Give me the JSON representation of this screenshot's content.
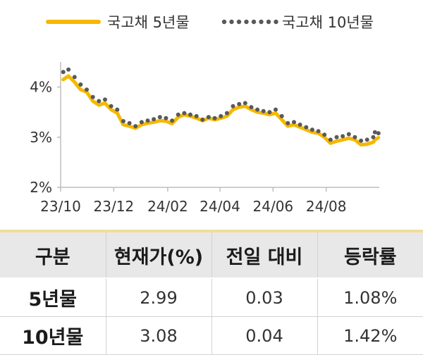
{
  "legend": [
    {
      "label": "국고채 5년물",
      "style": "solid",
      "color": "#f5b800"
    },
    {
      "label": "국고채 10년물",
      "style": "dotted",
      "color": "#595959"
    }
  ],
  "chart_data": {
    "type": "line",
    "ylim": [
      2,
      4.5
    ],
    "yticks": [
      "2%",
      "3%",
      "4%"
    ],
    "ytick_values": [
      2,
      3,
      4
    ],
    "xlim": [
      "2023-10-01",
      "2024-10-01"
    ],
    "xticks": [
      "23/10",
      "23/12",
      "24/02",
      "24/04",
      "24/06",
      "24/08"
    ],
    "xtick_dates": [
      "2023-10-01",
      "2023-12-01",
      "2024-02-01",
      "2024-04-01",
      "2024-06-01",
      "2024-08-01"
    ],
    "series": [
      {
        "name": "국고채 5년물",
        "color": "#f5b800",
        "style": "solid",
        "points": [
          [
            "2023-10-04",
            4.15
          ],
          [
            "2023-10-10",
            4.22
          ],
          [
            "2023-10-17",
            4.1
          ],
          [
            "2023-10-24",
            3.95
          ],
          [
            "2023-10-31",
            3.9
          ],
          [
            "2023-11-07",
            3.72
          ],
          [
            "2023-11-14",
            3.64
          ],
          [
            "2023-11-21",
            3.68
          ],
          [
            "2023-11-28",
            3.55
          ],
          [
            "2023-12-05",
            3.48
          ],
          [
            "2023-12-12",
            3.25
          ],
          [
            "2023-12-19",
            3.22
          ],
          [
            "2023-12-26",
            3.18
          ],
          [
            "2024-01-02",
            3.25
          ],
          [
            "2024-01-09",
            3.28
          ],
          [
            "2024-01-16",
            3.3
          ],
          [
            "2024-01-23",
            3.33
          ],
          [
            "2024-01-30",
            3.32
          ],
          [
            "2024-02-06",
            3.27
          ],
          [
            "2024-02-13",
            3.4
          ],
          [
            "2024-02-20",
            3.45
          ],
          [
            "2024-02-27",
            3.42
          ],
          [
            "2024-03-05",
            3.38
          ],
          [
            "2024-03-12",
            3.33
          ],
          [
            "2024-03-19",
            3.38
          ],
          [
            "2024-03-26",
            3.35
          ],
          [
            "2024-04-02",
            3.38
          ],
          [
            "2024-04-09",
            3.42
          ],
          [
            "2024-04-16",
            3.55
          ],
          [
            "2024-04-23",
            3.6
          ],
          [
            "2024-04-30",
            3.62
          ],
          [
            "2024-05-07",
            3.55
          ],
          [
            "2024-05-14",
            3.5
          ],
          [
            "2024-05-21",
            3.48
          ],
          [
            "2024-05-28",
            3.45
          ],
          [
            "2024-06-04",
            3.48
          ],
          [
            "2024-06-11",
            3.35
          ],
          [
            "2024-06-18",
            3.22
          ],
          [
            "2024-06-25",
            3.25
          ],
          [
            "2024-07-02",
            3.2
          ],
          [
            "2024-07-09",
            3.15
          ],
          [
            "2024-07-16",
            3.1
          ],
          [
            "2024-07-23",
            3.08
          ],
          [
            "2024-07-30",
            3.0
          ],
          [
            "2024-08-06",
            2.88
          ],
          [
            "2024-08-13",
            2.92
          ],
          [
            "2024-08-20",
            2.95
          ],
          [
            "2024-08-27",
            2.98
          ],
          [
            "2024-09-03",
            2.95
          ],
          [
            "2024-09-10",
            2.85
          ],
          [
            "2024-09-17",
            2.86
          ],
          [
            "2024-09-24",
            2.9
          ],
          [
            "2024-09-26",
            2.95
          ],
          [
            "2024-09-30",
            2.99
          ]
        ]
      },
      {
        "name": "국고채 10년물",
        "color": "#595959",
        "style": "dotted",
        "points": [
          [
            "2023-10-04",
            4.3
          ],
          [
            "2023-10-10",
            4.35
          ],
          [
            "2023-10-17",
            4.2
          ],
          [
            "2023-10-24",
            4.05
          ],
          [
            "2023-10-31",
            3.95
          ],
          [
            "2023-11-07",
            3.8
          ],
          [
            "2023-11-14",
            3.72
          ],
          [
            "2023-11-21",
            3.75
          ],
          [
            "2023-11-28",
            3.62
          ],
          [
            "2023-12-05",
            3.55
          ],
          [
            "2023-12-12",
            3.32
          ],
          [
            "2023-12-19",
            3.28
          ],
          [
            "2023-12-26",
            3.22
          ],
          [
            "2024-01-02",
            3.3
          ],
          [
            "2024-01-09",
            3.33
          ],
          [
            "2024-01-16",
            3.36
          ],
          [
            "2024-01-23",
            3.4
          ],
          [
            "2024-01-30",
            3.38
          ],
          [
            "2024-02-06",
            3.33
          ],
          [
            "2024-02-13",
            3.45
          ],
          [
            "2024-02-20",
            3.48
          ],
          [
            "2024-02-27",
            3.45
          ],
          [
            "2024-03-05",
            3.42
          ],
          [
            "2024-03-12",
            3.35
          ],
          [
            "2024-03-19",
            3.4
          ],
          [
            "2024-03-26",
            3.38
          ],
          [
            "2024-04-02",
            3.42
          ],
          [
            "2024-04-09",
            3.48
          ],
          [
            "2024-04-16",
            3.62
          ],
          [
            "2024-04-23",
            3.66
          ],
          [
            "2024-04-30",
            3.68
          ],
          [
            "2024-05-07",
            3.6
          ],
          [
            "2024-05-14",
            3.55
          ],
          [
            "2024-05-21",
            3.52
          ],
          [
            "2024-05-28",
            3.5
          ],
          [
            "2024-06-04",
            3.55
          ],
          [
            "2024-06-11",
            3.42
          ],
          [
            "2024-06-18",
            3.28
          ],
          [
            "2024-06-25",
            3.3
          ],
          [
            "2024-07-02",
            3.25
          ],
          [
            "2024-07-09",
            3.2
          ],
          [
            "2024-07-16",
            3.15
          ],
          [
            "2024-07-23",
            3.12
          ],
          [
            "2024-07-30",
            3.05
          ],
          [
            "2024-08-06",
            2.95
          ],
          [
            "2024-08-13",
            3.0
          ],
          [
            "2024-08-20",
            3.02
          ],
          [
            "2024-08-27",
            3.06
          ],
          [
            "2024-09-03",
            3.0
          ],
          [
            "2024-09-10",
            2.93
          ],
          [
            "2024-09-17",
            2.95
          ],
          [
            "2024-09-24",
            3.0
          ],
          [
            "2024-09-26",
            3.1
          ],
          [
            "2024-09-30",
            3.08
          ]
        ]
      }
    ]
  },
  "table": {
    "headers": [
      "구분",
      "현재가(%)",
      "전일 대비",
      "등락률"
    ],
    "rows": [
      {
        "label": "5년물",
        "current": "2.99",
        "change": "0.03",
        "rate": "1.08%"
      },
      {
        "label": "10년물",
        "current": "3.08",
        "change": "0.04",
        "rate": "1.42%"
      }
    ]
  }
}
